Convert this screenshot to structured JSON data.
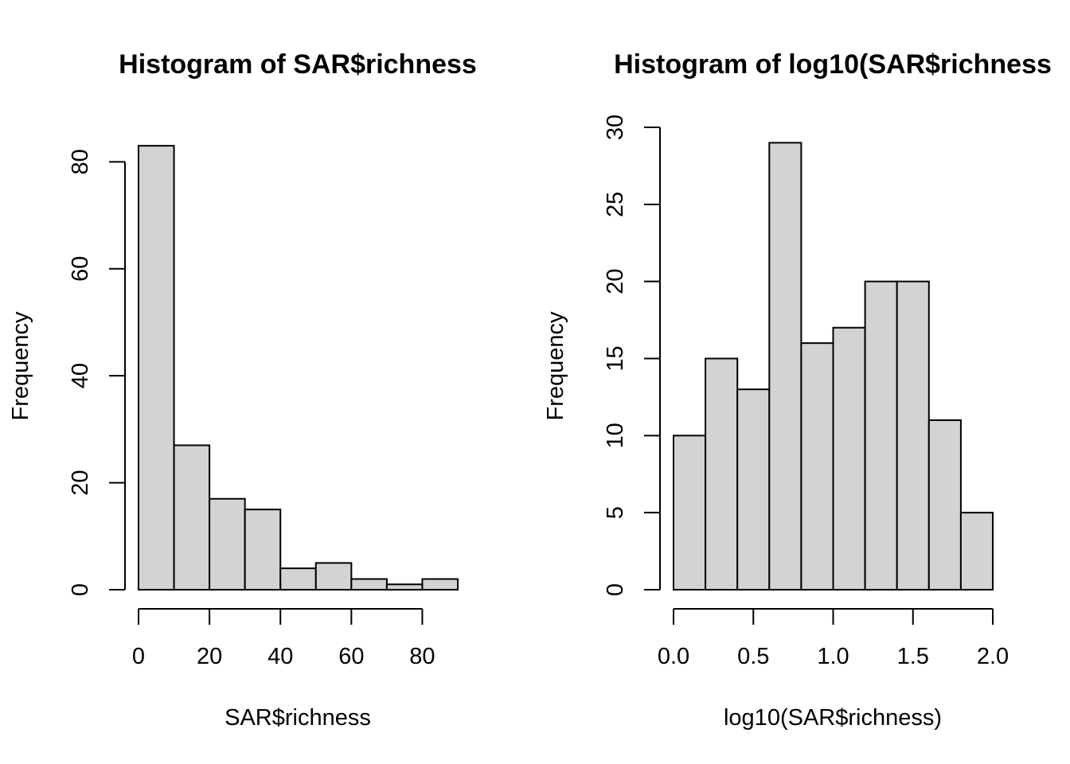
{
  "chart_data": [
    {
      "type": "bar",
      "title": "Histogram of SAR$richness",
      "xlabel": "SAR$richness",
      "ylabel": "Frequency",
      "bin_edges": [
        0,
        10,
        20,
        30,
        40,
        50,
        60,
        70,
        80,
        90
      ],
      "values": [
        83,
        27,
        17,
        15,
        4,
        5,
        2,
        1,
        2
      ],
      "x_ticks": [
        0,
        20,
        40,
        60,
        80
      ],
      "x_tick_labels": [
        "0",
        "20",
        "40",
        "60",
        "80"
      ],
      "y_ticks": [
        0,
        20,
        40,
        60,
        80
      ],
      "y_tick_labels": [
        "0",
        "20",
        "40",
        "60",
        "80"
      ],
      "xlim": [
        0,
        90
      ],
      "ylim": [
        0,
        86
      ],
      "bar_color": "#d3d3d3",
      "grid": false
    },
    {
      "type": "bar",
      "title": "Histogram of log10(SAR$richness",
      "xlabel": "log10(SAR$richness)",
      "ylabel": "Frequency",
      "bin_edges": [
        0.0,
        0.2,
        0.4,
        0.6,
        0.8,
        1.0,
        1.2,
        1.4,
        1.6,
        1.8,
        2.0
      ],
      "values": [
        10,
        15,
        13,
        29,
        16,
        17,
        20,
        20,
        11,
        5
      ],
      "x_ticks": [
        0.0,
        0.5,
        1.0,
        1.5,
        2.0
      ],
      "x_tick_labels": [
        "0.0",
        "0.5",
        "1.0",
        "1.5",
        "2.0"
      ],
      "y_ticks": [
        0,
        5,
        10,
        15,
        20,
        25,
        30
      ],
      "y_tick_labels": [
        "0",
        "5",
        "10",
        "15",
        "20",
        "25",
        "30"
      ],
      "xlim": [
        0,
        2
      ],
      "ylim": [
        0,
        30
      ],
      "bar_color": "#d3d3d3",
      "grid": false
    }
  ]
}
